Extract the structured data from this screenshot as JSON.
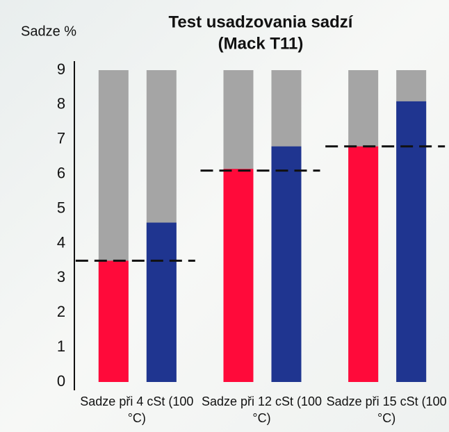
{
  "chart_data": {
    "type": "bar",
    "title": "Test usadzovania sadzí",
    "subtitle": "(Mack T11)",
    "y_label": "Sadze %",
    "categories": [
      "Sadze při 4 cSt (100 °C)",
      "Sadze při 12 cSt (100 °C)",
      "Sadze při 15 cSt (100 °C)"
    ],
    "series": [
      {
        "color": "#ff0a3a",
        "values": [
          3.5,
          6.15,
          6.8
        ]
      },
      {
        "color": "#1f3590",
        "values": [
          4.6,
          6.8,
          8.1
        ]
      }
    ],
    "limit_values": [
      3.5,
      6.1,
      6.8
    ],
    "limit_color": "#111111",
    "track_color": "#a5a5a5",
    "ylim": [
      0,
      9
    ],
    "yticks": [
      0,
      1,
      2,
      3,
      4,
      5,
      6,
      7,
      8,
      9
    ]
  }
}
